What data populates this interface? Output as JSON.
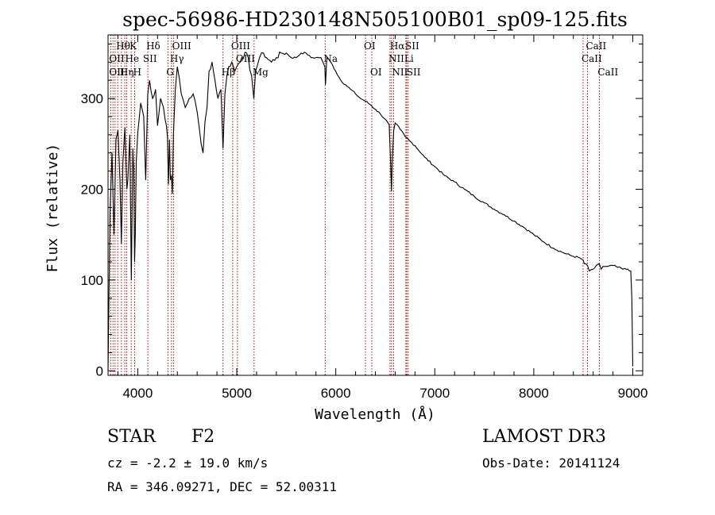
{
  "chart_data": {
    "type": "line",
    "title": "spec-56986-HD230148N505100B01_sp09-125.fits",
    "xlabel": "Wavelength (Å)",
    "ylabel": "Flux (relative)",
    "xlim": [
      3700,
      9100
    ],
    "ylim": [
      -5,
      370
    ],
    "xticks": [
      4000,
      5000,
      6000,
      7000,
      8000,
      9000
    ],
    "yticks": [
      0,
      100,
      200,
      300
    ],
    "series": [
      {
        "name": "spectrum",
        "x": [
          3700,
          3720,
          3740,
          3760,
          3780,
          3800,
          3820,
          3835,
          3850,
          3870,
          3890,
          3900,
          3920,
          3935,
          3950,
          3960,
          3968,
          3975,
          3985,
          4000,
          4030,
          4060,
          4080,
          4101,
          4120,
          4150,
          4180,
          4200,
          4230,
          4260,
          4290,
          4300,
          4310,
          4320,
          4330,
          4340,
          4350,
          4360,
          4380,
          4400,
          4440,
          4480,
          4520,
          4560,
          4600,
          4640,
          4660,
          4680,
          4700,
          4720,
          4750,
          4780,
          4810,
          4840,
          4861,
          4880,
          4900,
          4920,
          4950,
          4980,
          5000,
          5050,
          5100,
          5150,
          5172,
          5190,
          5230,
          5270,
          5300,
          5350,
          5400,
          5450,
          5500,
          5550,
          5600,
          5650,
          5700,
          5750,
          5800,
          5850,
          5870,
          5890,
          5896,
          5910,
          5950,
          6000,
          6050,
          6100,
          6150,
          6200,
          6250,
          6300,
          6350,
          6400,
          6450,
          6500,
          6540,
          6555,
          6563,
          6570,
          6585,
          6600,
          6650,
          6700,
          6750,
          6800,
          6900,
          7000,
          7100,
          7200,
          7300,
          7400,
          7500,
          7600,
          7700,
          7800,
          7900,
          8000,
          8100,
          8200,
          8300,
          8400,
          8450,
          8498,
          8510,
          8542,
          8560,
          8600,
          8662,
          8680,
          8700,
          8750,
          8800,
          8850,
          8900,
          8950,
          8980,
          8990,
          9000
        ],
        "y": [
          0,
          175,
          240,
          150,
          255,
          265,
          210,
          140,
          230,
          268,
          200,
          210,
          260,
          100,
          245,
          220,
          120,
          150,
          230,
          262,
          295,
          280,
          210,
          305,
          320,
          300,
          310,
          270,
          300,
          290,
          270,
          258,
          205,
          255,
          210,
          215,
          195,
          260,
          310,
          335,
          305,
          290,
          300,
          305,
          285,
          250,
          240,
          275,
          290,
          330,
          340,
          320,
          300,
          310,
          245,
          305,
          325,
          335,
          340,
          330,
          335,
          345,
          350,
          325,
          300,
          330,
          345,
          350,
          345,
          340,
          345,
          350,
          350,
          345,
          345,
          350,
          350,
          345,
          345,
          345,
          340,
          335,
          315,
          345,
          340,
          330,
          320,
          315,
          310,
          305,
          300,
          297,
          293,
          288,
          283,
          277,
          271,
          225,
          198,
          230,
          265,
          273,
          266,
          258,
          253,
          248,
          235,
          225,
          215,
          208,
          200,
          192,
          185,
          178,
          172,
          165,
          158,
          150,
          142,
          135,
          130,
          126,
          125,
          122,
          118,
          116,
          110,
          112,
          118,
          112,
          115,
          115,
          116,
          114,
          112,
          112,
          110,
          80,
          5
        ]
      }
    ],
    "line_markers": [
      {
        "label": "Hθ",
        "x": 3798,
        "row": 1
      },
      {
        "label": "OII",
        "x": 3727,
        "row": 2
      },
      {
        "label": "OII",
        "x": 3727,
        "row": 3
      },
      {
        "label": "Hη",
        "x": 3835,
        "row": 3
      },
      {
        "label": "He",
        "x": 3889,
        "row": 2
      },
      {
        "label": "K",
        "x": 3934,
        "row": 1
      },
      {
        "label": "H",
        "x": 3969,
        "row": 3
      },
      {
        "label": "SII",
        "x": 4068,
        "row": 2
      },
      {
        "label": "Hδ",
        "x": 4102,
        "row": 1
      },
      {
        "label": "OIII",
        "x": 4363,
        "row": 1
      },
      {
        "label": "Hγ",
        "x": 4341,
        "row": 2
      },
      {
        "label": "G",
        "x": 4305,
        "row": 3
      },
      {
        "label": "OIII",
        "x": 4959,
        "row": 1
      },
      {
        "label": "OIII",
        "x": 5007,
        "row": 2
      },
      {
        "label": "Hβ",
        "x": 4861,
        "row": 3
      },
      {
        "label": "Mg",
        "x": 5175,
        "row": 3
      },
      {
        "label": "Na",
        "x": 5893,
        "row": 2
      },
      {
        "label": "OI",
        "x": 6300,
        "row": 1
      },
      {
        "label": "OI",
        "x": 6364,
        "row": 3
      },
      {
        "label": "Hα",
        "x": 6563,
        "row": 1
      },
      {
        "label": "NII",
        "x": 6548,
        "row": 2
      },
      {
        "label": "NII",
        "x": 6584,
        "row": 3
      },
      {
        "label": "SII",
        "x": 6717,
        "row": 1
      },
      {
        "label": "Li",
        "x": 6708,
        "row": 2
      },
      {
        "label": "SII",
        "x": 6731,
        "row": 3
      },
      {
        "label": "CaII",
        "x": 8542,
        "row": 1
      },
      {
        "label": "CaII",
        "x": 8498,
        "row": 2
      },
      {
        "label": "CaII",
        "x": 8662,
        "row": 3
      }
    ],
    "marker_lines_x": [
      3727,
      3750,
      3771,
      3798,
      3835,
      3869,
      3889,
      3934,
      3969,
      4102,
      4305,
      4341,
      4363,
      4861,
      4959,
      5007,
      5175,
      5893,
      6300,
      6364,
      6548,
      6563,
      6584,
      6708,
      6717,
      6731,
      8498,
      8542,
      8662
    ]
  },
  "footer": {
    "object_type": "STAR",
    "subclass": "F2",
    "survey": "LAMOST DR3",
    "cz": "cz = -2.2 ± 19.0 km/s",
    "obs_date": "Obs-Date: 20141124",
    "radec": "RA = 346.09271, DEC =  52.00311"
  },
  "colors": {
    "spectrum": "#000000",
    "marker_line": "#a01010",
    "axes": "#000000"
  }
}
